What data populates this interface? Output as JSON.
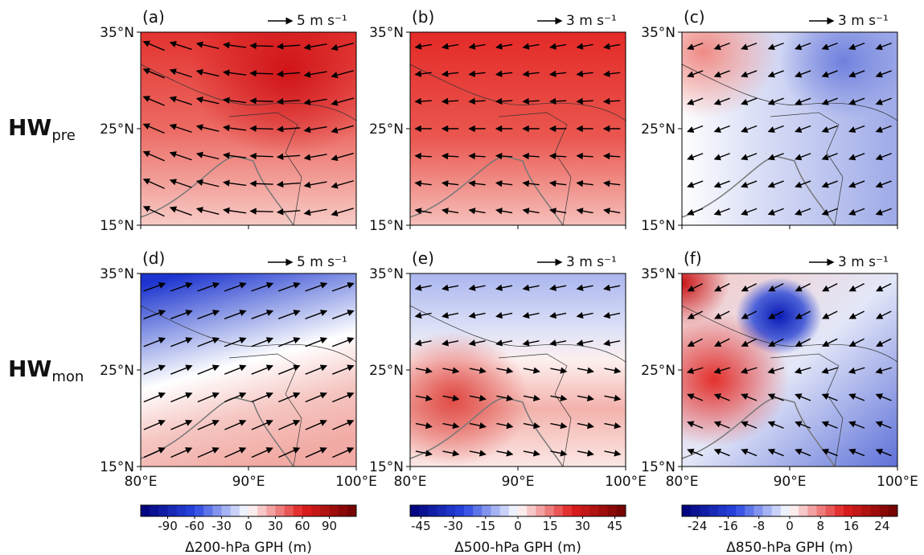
{
  "rows": [
    {
      "main": "HW",
      "sub": "pre"
    },
    {
      "main": "HW",
      "sub": "mon"
    }
  ],
  "panels": [
    {
      "label": "(a)",
      "ref_vector": "5 m s⁻¹"
    },
    {
      "label": "(b)",
      "ref_vector": "3 m s⁻¹"
    },
    {
      "label": "(c)",
      "ref_vector": "3 m s⁻¹"
    },
    {
      "label": "(d)",
      "ref_vector": "5 m s⁻¹"
    },
    {
      "label": "(e)",
      "ref_vector": "3 m s⁻¹"
    },
    {
      "label": "(f)",
      "ref_vector": "3 m s⁻¹"
    }
  ],
  "lat_ticks": [
    "35°N",
    "25°N",
    "15°N"
  ],
  "lon_ticks": [
    "80°E",
    "90°E",
    "100°E"
  ],
  "colorbars": [
    {
      "title": "Δ200-hPa GPH (m)",
      "lim": [
        -120,
        120
      ],
      "ticks": [
        -90,
        -60,
        -30,
        0,
        30,
        60,
        90
      ]
    },
    {
      "title": "Δ500-hPa GPH (m)",
      "lim": [
        -50,
        50
      ],
      "ticks": [
        -45,
        -30,
        -15,
        0,
        15,
        30,
        45
      ]
    },
    {
      "title": "Δ850-hPa GPH (m)",
      "lim": [
        -28,
        28
      ],
      "ticks": [
        -24,
        -16,
        -8,
        0,
        8,
        16,
        24
      ]
    }
  ]
}
